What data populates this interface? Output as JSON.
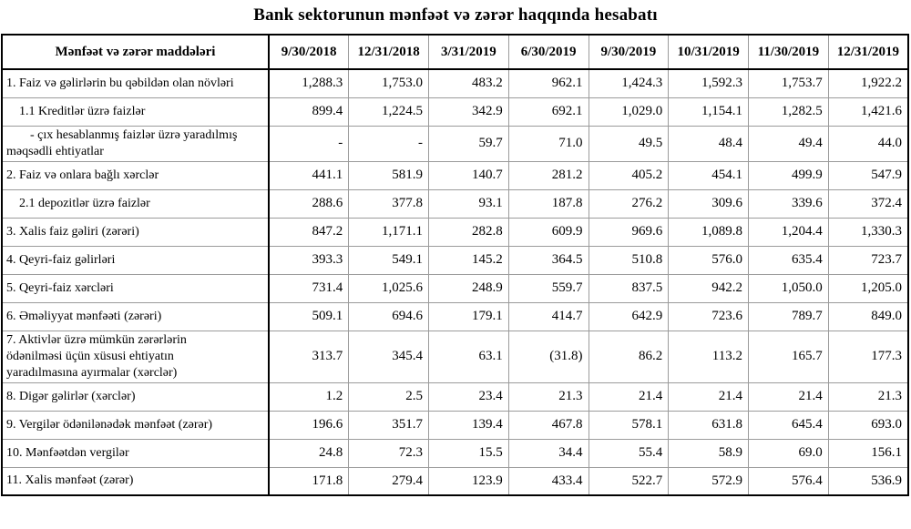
{
  "title": "Bank sektorunun mənfəət və zərər haqqında hesabatı",
  "colors": {
    "background": "#ffffff",
    "text": "#000000",
    "outer_border": "#000000",
    "grid_line": "#9b9b9b"
  },
  "table": {
    "header": {
      "label_col": "Mənfəət və zərər maddələri",
      "date_cols": [
        "9/30/2018",
        "12/31/2018",
        "3/31/2019",
        "6/30/2019",
        "9/30/2019",
        "10/31/2019",
        "11/30/2019",
        "12/31/2019"
      ]
    },
    "rows": [
      {
        "label": "1. Faiz və gəlirlərin bu qəbildən olan növləri",
        "level": 0,
        "values": [
          "1,288.3",
          "1,753.0",
          "483.2",
          "962.1",
          "1,424.3",
          "1,592.3",
          "1,753.7",
          "1,922.2"
        ]
      },
      {
        "label": "1.1 Kreditlər üzrə faizlər",
        "level": 1,
        "values": [
          "899.4",
          "1,224.5",
          "342.9",
          "692.1",
          "1,029.0",
          "1,154.1",
          "1,282.5",
          "1,421.6"
        ]
      },
      {
        "label": "-  çıx hesablanmış faizlər üzrə yaradılmış\nməqsədli ehtiyatlar",
        "level": 2,
        "values": [
          "-",
          "-",
          "59.7",
          "71.0",
          "49.5",
          "48.4",
          "49.4",
          "44.0"
        ]
      },
      {
        "label": "2. Faiz və onlara bağlı xərclər",
        "level": 0,
        "values": [
          "441.1",
          "581.9",
          "140.7",
          "281.2",
          "405.2",
          "454.1",
          "499.9",
          "547.9"
        ]
      },
      {
        "label": "2.1 depozitlər üzrə faizlər",
        "level": 1,
        "values": [
          "288.6",
          "377.8",
          "93.1",
          "187.8",
          "276.2",
          "309.6",
          "339.6",
          "372.4"
        ]
      },
      {
        "label": "3. Xalis faiz gəliri (zərəri)",
        "level": 0,
        "values": [
          "847.2",
          "1,171.1",
          "282.8",
          "609.9",
          "969.6",
          "1,089.8",
          "1,204.4",
          "1,330.3"
        ]
      },
      {
        "label": "4. Qeyri-faiz gəlirləri",
        "level": 0,
        "values": [
          "393.3",
          "549.1",
          "145.2",
          "364.5",
          "510.8",
          "576.0",
          "635.4",
          "723.7"
        ]
      },
      {
        "label": "5. Qeyri-faiz xərcləri",
        "level": 0,
        "values": [
          "731.4",
          "1,025.6",
          "248.9",
          "559.7",
          "837.5",
          "942.2",
          "1,050.0",
          "1,205.0"
        ]
      },
      {
        "label": "6. Əməliyyat mənfəəti (zərəri)",
        "level": 0,
        "values": [
          "509.1",
          "694.6",
          "179.1",
          "414.7",
          "642.9",
          "723.6",
          "789.7",
          "849.0"
        ]
      },
      {
        "label": "7. Aktivlər üzrə mümkün zərərlərin\nödənilməsi üçün xüsusi ehtiyatın\nyaradılmasına ayırmalar (xərclər)",
        "level": 0,
        "values": [
          "313.7",
          "345.4",
          "63.1",
          "(31.8)",
          "86.2",
          "113.2",
          "165.7",
          "177.3"
        ]
      },
      {
        "label": "8. Digər gəlirlər (xərclər)",
        "level": 0,
        "values": [
          "1.2",
          "2.5",
          "23.4",
          "21.3",
          "21.4",
          "21.4",
          "21.4",
          "21.3"
        ]
      },
      {
        "label": "9. Vergilər ödənilənədək mənfəət (zərər)",
        "level": 0,
        "values": [
          "196.6",
          "351.7",
          "139.4",
          "467.8",
          "578.1",
          "631.8",
          "645.4",
          "693.0"
        ]
      },
      {
        "label": "10. Mənfəətdən vergilər",
        "level": 0,
        "values": [
          "24.8",
          "72.3",
          "15.5",
          "34.4",
          "55.4",
          "58.9",
          "69.0",
          "156.1"
        ]
      },
      {
        "label": "11. Xalis mənfəət (zərər)",
        "level": 0,
        "values": [
          "171.8",
          "279.4",
          "123.9",
          "433.4",
          "522.7",
          "572.9",
          "576.4",
          "536.9"
        ]
      }
    ]
  }
}
